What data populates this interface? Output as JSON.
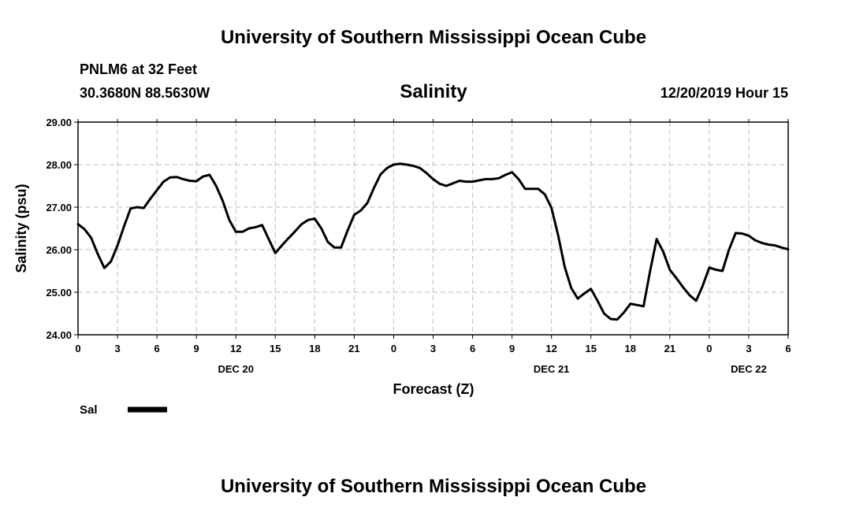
{
  "header": {
    "org_title": "University of Southern Mississippi Ocean Cube",
    "station": "PNLM6 at 32 Feet",
    "coords": "30.3680N 88.5630W",
    "parameter": "Salinity",
    "run_time": "12/20/2019 Hour 15"
  },
  "footer": {
    "org_title": "University of Southern Mississippi Ocean Cube"
  },
  "legend": {
    "label": "Sal",
    "color": "#000000"
  },
  "chart_data": {
    "type": "line",
    "title": "Salinity",
    "xlabel": "Forecast (Z)",
    "ylabel": "Salinity (psu)",
    "xlim": [
      0,
      54
    ],
    "ylim": [
      24.0,
      29.0
    ],
    "grid": true,
    "x_ticks": [
      {
        "x": 0,
        "label": "0"
      },
      {
        "x": 3,
        "label": "3"
      },
      {
        "x": 6,
        "label": "6"
      },
      {
        "x": 9,
        "label": "9"
      },
      {
        "x": 12,
        "label": "12"
      },
      {
        "x": 15,
        "label": "15"
      },
      {
        "x": 18,
        "label": "18"
      },
      {
        "x": 21,
        "label": "21"
      },
      {
        "x": 24,
        "label": "0"
      },
      {
        "x": 27,
        "label": "3"
      },
      {
        "x": 30,
        "label": "6"
      },
      {
        "x": 33,
        "label": "9"
      },
      {
        "x": 36,
        "label": "12"
      },
      {
        "x": 39,
        "label": "15"
      },
      {
        "x": 42,
        "label": "18"
      },
      {
        "x": 45,
        "label": "21"
      },
      {
        "x": 48,
        "label": "0"
      },
      {
        "x": 51,
        "label": "3"
      },
      {
        "x": 54,
        "label": "6"
      }
    ],
    "date_labels": [
      {
        "x": 12,
        "label": "DEC 20"
      },
      {
        "x": 36,
        "label": "DEC 21"
      },
      {
        "x": 51,
        "label": "DEC 22"
      }
    ],
    "y_ticks": [
      {
        "y": 24.0,
        "label": "24.00"
      },
      {
        "y": 25.0,
        "label": "25.00"
      },
      {
        "y": 26.0,
        "label": "26.00"
      },
      {
        "y": 27.0,
        "label": "27.00"
      },
      {
        "y": 28.0,
        "label": "28.00"
      },
      {
        "y": 29.0,
        "label": "29.00"
      }
    ],
    "series": [
      {
        "name": "Sal",
        "x": [
          0,
          0.5,
          1,
          1.5,
          2,
          2.5,
          3,
          3.5,
          4,
          4.5,
          5,
          5.5,
          6,
          6.5,
          7,
          7.5,
          8,
          8.5,
          9,
          9.5,
          10,
          10.5,
          11,
          11.5,
          12,
          12.5,
          13,
          13.5,
          14,
          14.5,
          15,
          15.5,
          16,
          16.5,
          17,
          17.5,
          18,
          18.5,
          19,
          19.5,
          20,
          20.5,
          21,
          21.5,
          22,
          22.5,
          23,
          23.5,
          24,
          24.5,
          25,
          25.5,
          26,
          26.5,
          27,
          27.5,
          28,
          28.5,
          29,
          29.5,
          30,
          30.5,
          31,
          31.5,
          32,
          32.5,
          33,
          33.5,
          34,
          34.5,
          35,
          35.5,
          36,
          36.5,
          37,
          37.5,
          38,
          38.5,
          39,
          39.5,
          40,
          40.5,
          41,
          41.5,
          42,
          42.5,
          43,
          43.5,
          44,
          44.5,
          45,
          45.5,
          46,
          46.5,
          47,
          47.5,
          48,
          48.5,
          49,
          49.5,
          50,
          50.5,
          51,
          51.5,
          52,
          52.5,
          53,
          53.5,
          54
        ],
        "y": [
          26.6,
          26.48,
          26.28,
          25.9,
          25.57,
          25.72,
          26.1,
          26.55,
          26.97,
          27.0,
          26.98,
          27.2,
          27.4,
          27.6,
          27.7,
          27.71,
          27.66,
          27.62,
          27.61,
          27.72,
          27.76,
          27.5,
          27.15,
          26.7,
          26.42,
          26.42,
          26.5,
          26.53,
          26.58,
          26.25,
          25.92,
          26.1,
          26.27,
          26.43,
          26.6,
          26.7,
          26.73,
          26.5,
          26.18,
          26.05,
          26.05,
          26.45,
          26.82,
          26.92,
          27.1,
          27.45,
          27.77,
          27.92,
          28.0,
          28.02,
          28.0,
          27.97,
          27.92,
          27.8,
          27.66,
          27.55,
          27.5,
          27.56,
          27.62,
          27.6,
          27.6,
          27.63,
          27.66,
          27.66,
          27.68,
          27.76,
          27.82,
          27.66,
          27.43,
          27.43,
          27.43,
          27.3,
          26.98,
          26.35,
          25.6,
          25.1,
          24.85,
          24.97,
          25.08,
          24.8,
          24.5,
          24.37,
          24.36,
          24.52,
          24.73,
          24.7,
          24.67,
          25.5,
          26.25,
          25.95,
          25.53,
          25.33,
          25.12,
          24.93,
          24.8,
          25.15,
          25.58,
          25.53,
          25.5,
          26.0,
          26.39,
          26.38,
          26.33,
          26.22,
          26.16,
          26.12,
          26.1,
          26.05,
          26.01
        ]
      }
    ]
  }
}
